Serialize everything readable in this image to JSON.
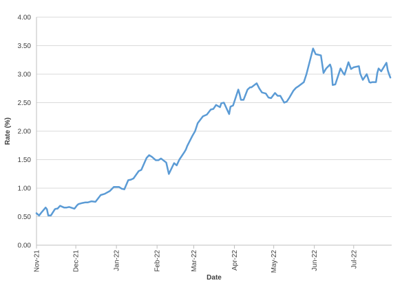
{
  "chart_data": {
    "type": "line",
    "xlabel": "Date",
    "ylabel": "Rate (%)",
    "ylim": [
      0,
      4
    ],
    "yticks": [
      "0.00",
      "0.50",
      "1.00",
      "1.50",
      "2.00",
      "2.50",
      "3.00",
      "3.50",
      "4.00"
    ],
    "xticks": [
      "Nov-21",
      "Dec-21",
      "Jan-22",
      "Feb-22",
      "Mar-22",
      "Apr-22",
      "May-22",
      "Jun-22",
      "Jul-22"
    ],
    "grid": "horizontal",
    "colors": {
      "series": "#5b9bd5",
      "grid": "#d9d9d9",
      "axis": "#bfbfbf",
      "text": "#404040"
    },
    "series": [
      {
        "x": [
          "2021-11-01",
          "2021-11-03",
          "2021-11-05",
          "2021-11-08",
          "2021-11-09",
          "2021-11-10",
          "2021-11-12",
          "2021-11-15",
          "2021-11-16",
          "2021-11-17",
          "2021-11-19",
          "2021-11-22",
          "2021-11-24",
          "2021-11-26",
          "2021-11-30",
          "2021-12-02",
          "2021-12-03",
          "2021-12-06",
          "2021-12-08",
          "2021-12-10",
          "2021-12-13",
          "2021-12-16",
          "2021-12-20",
          "2021-12-23",
          "2021-12-27",
          "2021-12-30",
          "2022-01-03",
          "2022-01-05",
          "2022-01-07",
          "2022-01-10",
          "2022-01-12",
          "2022-01-14",
          "2022-01-18",
          "2022-01-20",
          "2022-01-24",
          "2022-01-26",
          "2022-01-28",
          "2022-01-31",
          "2022-02-02",
          "2022-02-04",
          "2022-02-08",
          "2022-02-10",
          "2022-02-14",
          "2022-02-16",
          "2022-02-18",
          "2022-02-22",
          "2022-02-23",
          "2022-02-24",
          "2022-02-28",
          "2022-03-02",
          "2022-03-04",
          "2022-03-08",
          "2022-03-11",
          "2022-03-14",
          "2022-03-16",
          "2022-03-18",
          "2022-03-21",
          "2022-03-22",
          "2022-03-24",
          "2022-03-28",
          "2022-03-29",
          "2022-03-31",
          "2022-04-04",
          "2022-04-05",
          "2022-04-06",
          "2022-04-08",
          "2022-04-11",
          "2022-04-13",
          "2022-04-14",
          "2022-04-18",
          "2022-04-20",
          "2022-04-22",
          "2022-04-25",
          "2022-04-27",
          "2022-04-29",
          "2022-05-02",
          "2022-05-04",
          "2022-05-06",
          "2022-05-09",
          "2022-05-11",
          "2022-05-13",
          "2022-05-16",
          "2022-05-18",
          "2022-05-20",
          "2022-05-24",
          "2022-05-26",
          "2022-05-31",
          "2022-06-02",
          "2022-06-06",
          "2022-06-08",
          "2022-06-10",
          "2022-06-13",
          "2022-06-14",
          "2022-06-15",
          "2022-06-17",
          "2022-06-21",
          "2022-06-23",
          "2022-06-24",
          "2022-06-27",
          "2022-06-29",
          "2022-07-01",
          "2022-07-05",
          "2022-07-06",
          "2022-07-08",
          "2022-07-11",
          "2022-07-13",
          "2022-07-14",
          "2022-07-15",
          "2022-07-18",
          "2022-07-19",
          "2022-07-20",
          "2022-07-22",
          "2022-07-26",
          "2022-07-27",
          "2022-07-28",
          "2022-07-29"
        ],
        "values": [
          0.56,
          0.52,
          0.58,
          0.66,
          0.63,
          0.52,
          0.52,
          0.63,
          0.64,
          0.64,
          0.69,
          0.66,
          0.66,
          0.67,
          0.64,
          0.7,
          0.72,
          0.74,
          0.75,
          0.75,
          0.77,
          0.76,
          0.88,
          0.9,
          0.95,
          1.02,
          1.02,
          0.99,
          0.98,
          1.14,
          1.15,
          1.17,
          1.3,
          1.32,
          1.53,
          1.58,
          1.55,
          1.49,
          1.49,
          1.52,
          1.45,
          1.25,
          1.44,
          1.4,
          1.5,
          1.64,
          1.68,
          1.74,
          1.92,
          2.0,
          2.14,
          2.26,
          2.29,
          2.38,
          2.39,
          2.46,
          2.42,
          2.49,
          2.5,
          2.3,
          2.43,
          2.45,
          2.73,
          2.65,
          2.55,
          2.55,
          2.73,
          2.77,
          2.77,
          2.84,
          2.75,
          2.68,
          2.66,
          2.59,
          2.58,
          2.67,
          2.62,
          2.62,
          2.5,
          2.52,
          2.59,
          2.71,
          2.76,
          2.79,
          2.86,
          3.0,
          3.45,
          3.35,
          3.33,
          3.02,
          3.1,
          3.17,
          3.1,
          2.81,
          2.82,
          3.1,
          3.02,
          2.99,
          3.21,
          3.09,
          3.12,
          3.14,
          3.01,
          2.9,
          3.0,
          2.86,
          2.85,
          2.86,
          2.86,
          3.02,
          3.1,
          3.05,
          3.2,
          3.07,
          3.0,
          2.94
        ]
      }
    ]
  }
}
